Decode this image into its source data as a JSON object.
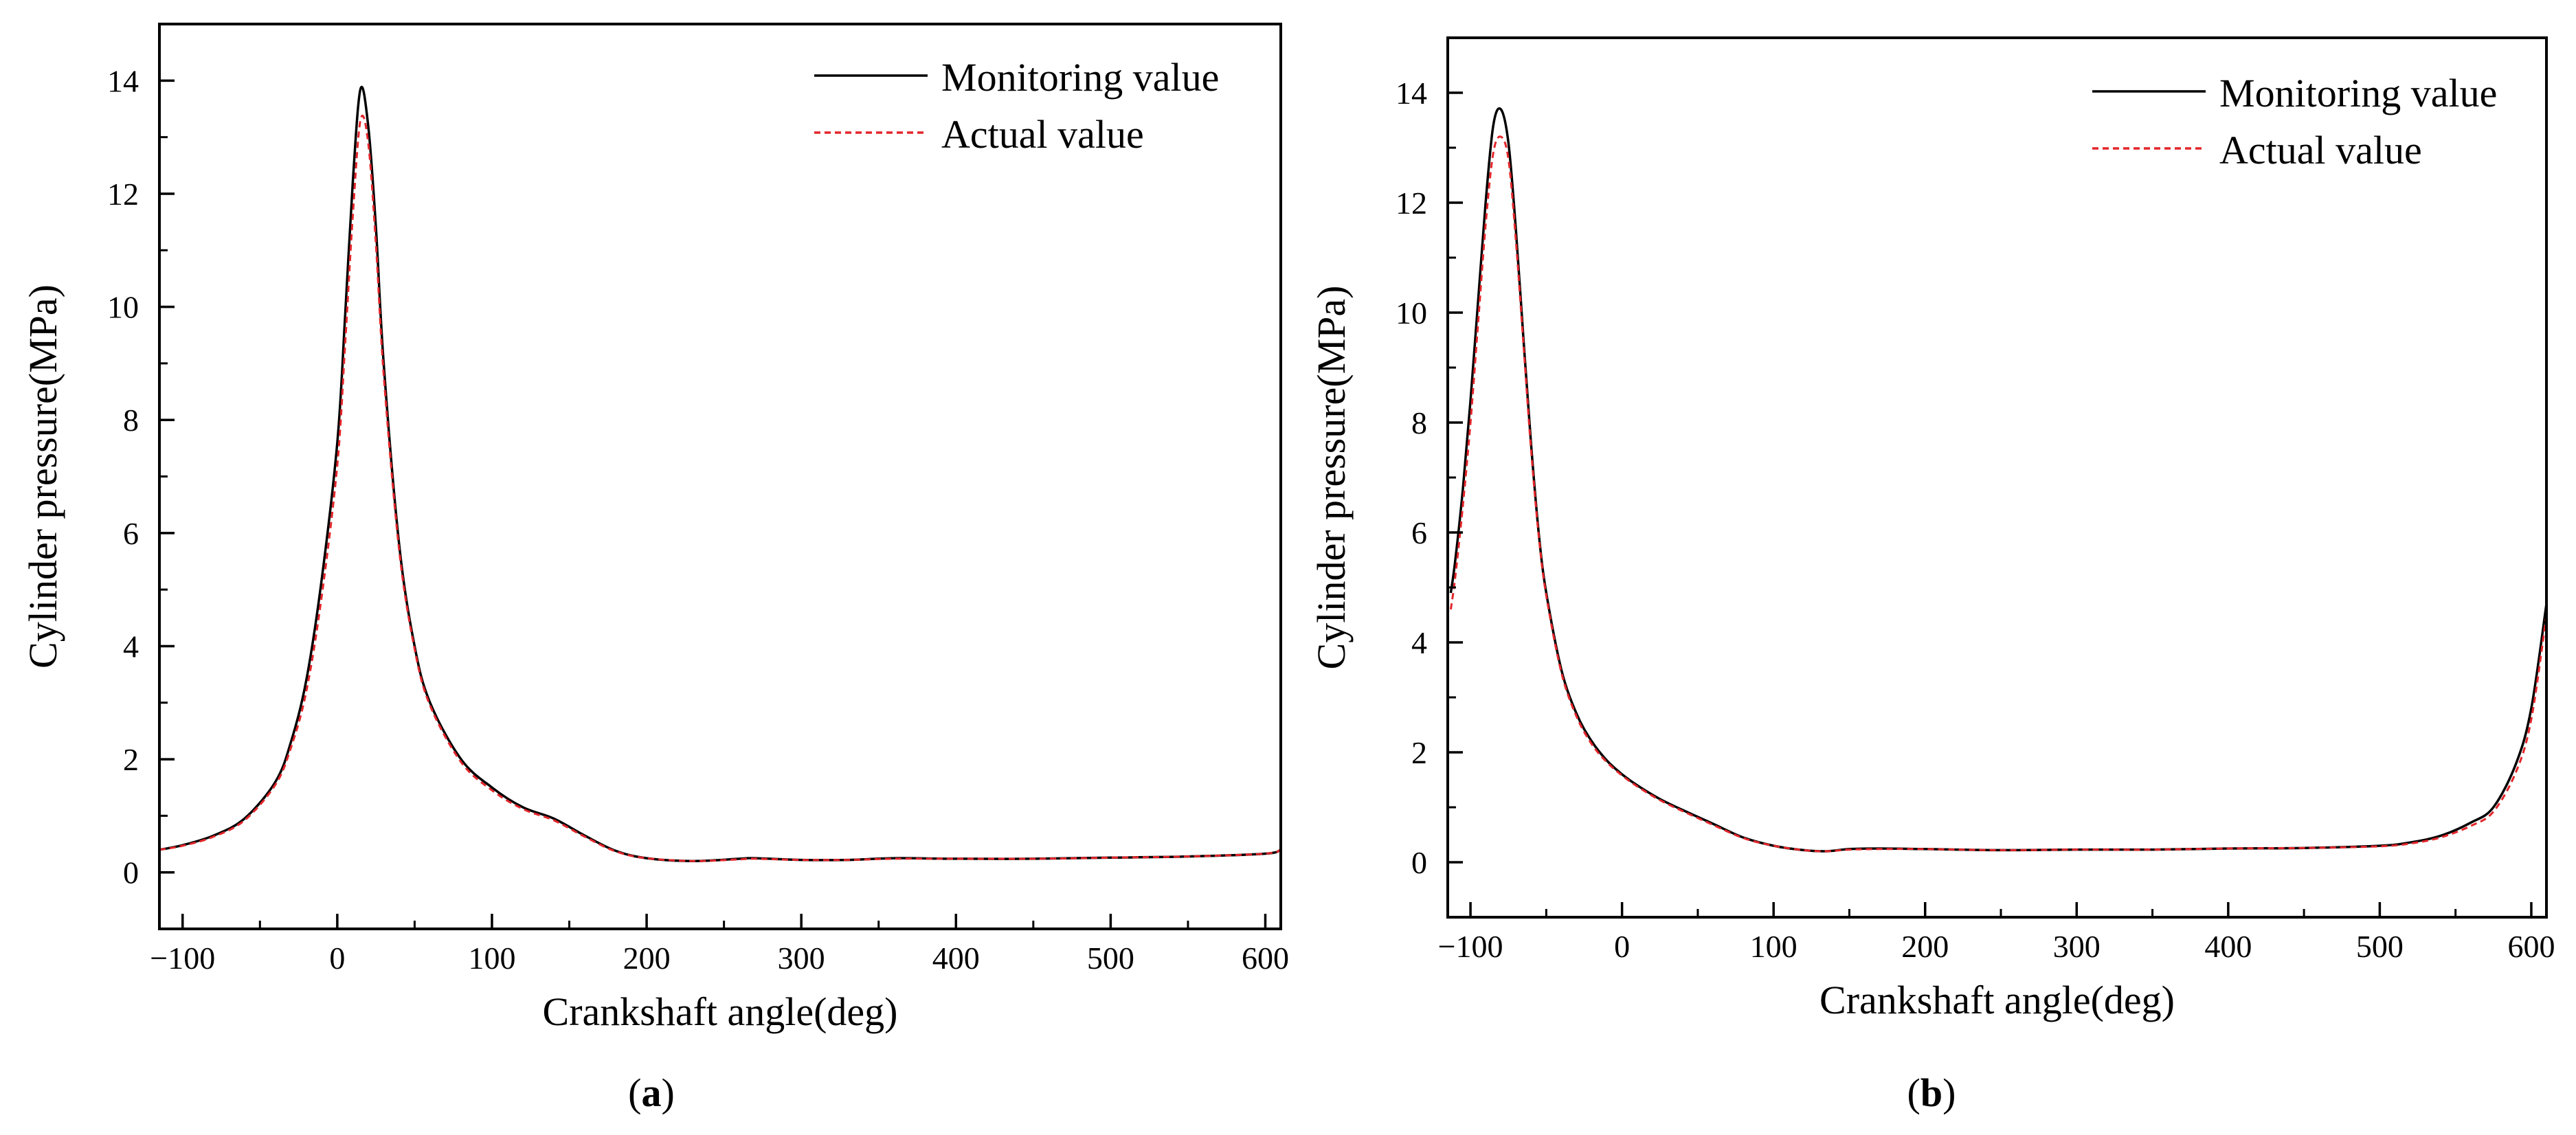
{
  "chart_data": [
    {
      "type": "line",
      "panel_label": "a",
      "xlabel": "Crankshaft angle(deg)",
      "ylabel": "Cylinder pressure(MPa)",
      "xlim": [
        -115,
        610
      ],
      "ylim": [
        -1,
        15
      ],
      "xticks": [
        -100,
        0,
        100,
        200,
        300,
        400,
        500,
        600
      ],
      "yticks": [
        0,
        2,
        4,
        6,
        8,
        10,
        12,
        14
      ],
      "xtick_labels": [
        "−100",
        "0",
        "100",
        "200",
        "300",
        "400",
        "500",
        "600"
      ],
      "ytick_labels": [
        "0",
        "2",
        "4",
        "6",
        "8",
        "10",
        "12",
        "14"
      ],
      "legend_position": "top-right",
      "series": [
        {
          "name": "Monitoring value",
          "color": "#000000",
          "dash": "solid",
          "x": [
            -115,
            -100,
            -80,
            -60,
            -40,
            -30,
            -20,
            -10,
            0,
            5,
            10,
            15,
            20,
            25,
            30,
            40,
            50,
            60,
            80,
            100,
            120,
            140,
            160,
            180,
            200,
            230,
            260,
            270,
            300,
            330,
            360,
            400,
            450,
            500,
            550,
            600,
            610
          ],
          "y": [
            0.4,
            0.48,
            0.65,
            0.95,
            1.6,
            2.3,
            3.4,
            5.2,
            7.6,
            9.8,
            12.2,
            13.85,
            13.2,
            11.4,
            9.0,
            5.8,
            4.0,
            3.0,
            2.0,
            1.5,
            1.15,
            0.95,
            0.65,
            0.38,
            0.25,
            0.2,
            0.24,
            0.25,
            0.22,
            0.22,
            0.25,
            0.24,
            0.24,
            0.26,
            0.28,
            0.33,
            0.4
          ]
        },
        {
          "name": "Actual value",
          "color": "#e3262b",
          "dash": "dashed",
          "x": [
            -115,
            -100,
            -80,
            -60,
            -40,
            -30,
            -20,
            -10,
            0,
            5,
            10,
            15,
            20,
            25,
            30,
            40,
            50,
            60,
            80,
            100,
            120,
            140,
            160,
            180,
            200,
            230,
            260,
            270,
            300,
            330,
            360,
            400,
            450,
            500,
            550,
            600,
            610
          ],
          "y": [
            0.4,
            0.47,
            0.63,
            0.92,
            1.55,
            2.2,
            3.2,
            4.9,
            7.2,
            9.3,
            11.6,
            13.3,
            12.9,
            11.1,
            8.8,
            5.7,
            3.95,
            2.95,
            1.95,
            1.45,
            1.12,
            0.92,
            0.63,
            0.37,
            0.25,
            0.2,
            0.23,
            0.24,
            0.22,
            0.22,
            0.24,
            0.24,
            0.24,
            0.26,
            0.28,
            0.33,
            0.4
          ]
        }
      ]
    },
    {
      "type": "line",
      "panel_label": "b",
      "xlabel": "Crankshaft angle(deg)",
      "ylabel": "Cylinder pressure(MPa)",
      "xlim": [
        -115,
        610
      ],
      "ylim": [
        -1,
        15
      ],
      "xticks": [
        -100,
        0,
        100,
        200,
        300,
        400,
        500,
        600
      ],
      "yticks": [
        0,
        2,
        4,
        6,
        8,
        10,
        12,
        14
      ],
      "xtick_labels": [
        "−100",
        "0",
        "100",
        "200",
        "300",
        "400",
        "500",
        "600"
      ],
      "ytick_labels": [
        "0",
        "2",
        "4",
        "6",
        "8",
        "10",
        "12",
        "14"
      ],
      "legend_position": "top-right",
      "series": [
        {
          "name": "Monitoring value",
          "color": "#000000",
          "dash": "solid",
          "x": [
            -113,
            -110,
            -105,
            -100,
            -95,
            -90,
            -85,
            -80,
            -75,
            -70,
            -65,
            -60,
            -55,
            -50,
            -40,
            -30,
            -20,
            -10,
            0,
            10,
            25,
            40,
            60,
            80,
            100,
            120,
            135,
            150,
            170,
            200,
            250,
            300,
            350,
            400,
            450,
            500,
            520,
            540,
            560,
            575,
            590,
            600,
            610
          ],
          "y": [
            4.9,
            5.5,
            6.8,
            8.4,
            10.2,
            12.0,
            13.4,
            13.7,
            13.1,
            11.5,
            9.5,
            7.6,
            6.0,
            4.9,
            3.5,
            2.7,
            2.2,
            1.85,
            1.6,
            1.4,
            1.15,
            0.95,
            0.7,
            0.45,
            0.3,
            0.22,
            0.2,
            0.24,
            0.25,
            0.24,
            0.22,
            0.23,
            0.23,
            0.25,
            0.26,
            0.3,
            0.36,
            0.48,
            0.72,
            1.0,
            1.8,
            2.8,
            4.7
          ]
        },
        {
          "name": "Actual value",
          "color": "#e3262b",
          "dash": "dashed",
          "x": [
            -113,
            -110,
            -105,
            -100,
            -95,
            -90,
            -85,
            -80,
            -75,
            -70,
            -65,
            -60,
            -55,
            -50,
            -40,
            -30,
            -20,
            -10,
            0,
            10,
            25,
            40,
            60,
            80,
            100,
            120,
            135,
            150,
            170,
            200,
            250,
            300,
            350,
            400,
            450,
            500,
            520,
            540,
            560,
            575,
            590,
            600,
            610
          ],
          "y": [
            4.6,
            5.2,
            6.5,
            8.0,
            9.8,
            11.6,
            12.9,
            13.2,
            12.8,
            11.3,
            9.4,
            7.5,
            5.95,
            4.85,
            3.45,
            2.65,
            2.15,
            1.82,
            1.58,
            1.38,
            1.13,
            0.93,
            0.68,
            0.44,
            0.3,
            0.22,
            0.2,
            0.23,
            0.24,
            0.24,
            0.22,
            0.23,
            0.23,
            0.25,
            0.26,
            0.29,
            0.34,
            0.45,
            0.66,
            0.92,
            1.65,
            2.6,
            4.5
          ]
        }
      ]
    }
  ]
}
